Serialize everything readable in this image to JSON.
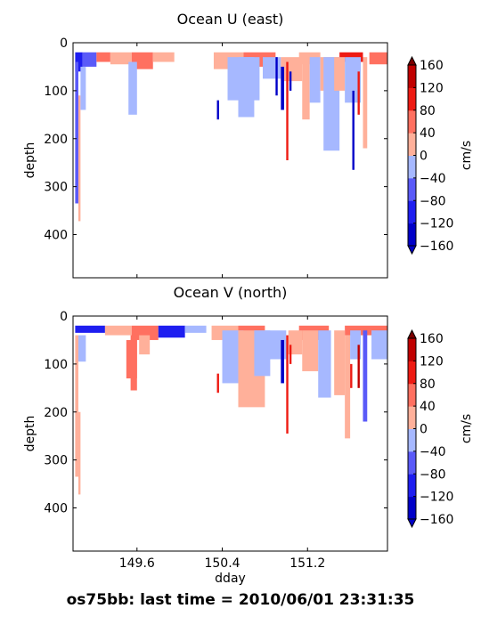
{
  "figure_title": "os75bb: last time = 2010/06/01 23:31:35",
  "chart_data": [
    {
      "type": "heatmap",
      "title": "Ocean U (east)",
      "xlabel": "",
      "ylabel": "depth",
      "xlim": [
        149.0,
        151.95
      ],
      "ylim": [
        490,
        0
      ],
      "x_ticks": [
        149.6,
        150.4,
        151.2
      ],
      "x_tick_labels": [],
      "y_ticks": [
        0,
        100,
        200,
        300,
        400
      ],
      "y_tick_labels": [
        "0",
        "100",
        "200",
        "300",
        "400"
      ],
      "grid": false,
      "colorbar": {
        "label": "cm/s",
        "bounds": [
          -160,
          -120,
          -80,
          -40,
          0,
          40,
          80,
          120,
          160
        ],
        "tick_labels": [
          "−160",
          "−120",
          "−80",
          "−40",
          "0",
          "40",
          "80",
          "120",
          "160"
        ],
        "colors": [
          "#0000c8",
          "#1e1ef0",
          "#5a5af8",
          "#a6b8ff",
          "#ffb09a",
          "#ff7060",
          "#ee1a12",
          "#c00000",
          "#7a0000"
        ]
      },
      "cells": [
        {
          "x": [
            149.02,
            149.09
          ],
          "depth": [
            20,
            60
          ],
          "value": -120
        },
        {
          "x": [
            149.09,
            149.22
          ],
          "depth": [
            20,
            50
          ],
          "value": -50
        },
        {
          "x": [
            149.22,
            149.35
          ],
          "depth": [
            20,
            40
          ],
          "value": 60
        },
        {
          "x": [
            149.35,
            149.55
          ],
          "depth": [
            20,
            45
          ],
          "value": 30
        },
        {
          "x": [
            149.55,
            149.75
          ],
          "depth": [
            20,
            55
          ],
          "value": 70
        },
        {
          "x": [
            149.75,
            149.95
          ],
          "depth": [
            20,
            40
          ],
          "value": 30
        },
        {
          "x": [
            150.32,
            150.6
          ],
          "depth": [
            20,
            55
          ],
          "value": 25
        },
        {
          "x": [
            150.6,
            150.9
          ],
          "depth": [
            20,
            50
          ],
          "value": 40
        },
        {
          "x": [
            151.12,
            151.32
          ],
          "depth": [
            20,
            45
          ],
          "value": 30
        },
        {
          "x": [
            151.5,
            151.72
          ],
          "depth": [
            20,
            40
          ],
          "value": 80
        },
        {
          "x": [
            151.78,
            151.95
          ],
          "depth": [
            20,
            45
          ],
          "value": 40
        },
        {
          "x": [
            149.02,
            149.05
          ],
          "depth": [
            40,
            335
          ],
          "value": -50
        },
        {
          "x": [
            149.05,
            149.07
          ],
          "depth": [
            110,
            372
          ],
          "value": 30
        },
        {
          "x": [
            149.07,
            149.12
          ],
          "depth": [
            50,
            140
          ],
          "value": -40
        },
        {
          "x": [
            149.52,
            149.6
          ],
          "depth": [
            40,
            150
          ],
          "value": -40
        },
        {
          "x": [
            150.45,
            150.75
          ],
          "depth": [
            30,
            120
          ],
          "value": -40
        },
        {
          "x": [
            150.55,
            150.7
          ],
          "depth": [
            30,
            155
          ],
          "value": -40
        },
        {
          "x": [
            150.78,
            150.95
          ],
          "depth": [
            30,
            75
          ],
          "value": -40
        },
        {
          "x": [
            150.95,
            151.15
          ],
          "depth": [
            30,
            80
          ],
          "value": 30
        },
        {
          "x": [
            151.15,
            151.22
          ],
          "depth": [
            30,
            160
          ],
          "value": 30
        },
        {
          "x": [
            151.22,
            151.32
          ],
          "depth": [
            30,
            125
          ],
          "value": -40
        },
        {
          "x": [
            151.32,
            151.45
          ],
          "depth": [
            30,
            100
          ],
          "value": 30
        },
        {
          "x": [
            151.35,
            151.5
          ],
          "depth": [
            30,
            225
          ],
          "value": -40
        },
        {
          "x": [
            151.45,
            151.55
          ],
          "depth": [
            30,
            100
          ],
          "value": 30
        },
        {
          "x": [
            151.55,
            151.7
          ],
          "depth": [
            30,
            125
          ],
          "value": -40
        },
        {
          "x": [
            151.62,
            151.64
          ],
          "depth": [
            100,
            265
          ],
          "value": -140
        },
        {
          "x": [
            151.72,
            151.76
          ],
          "depth": [
            30,
            220
          ],
          "value": 30
        },
        {
          "x": [
            150.35,
            150.37
          ],
          "depth": [
            120,
            160
          ],
          "value": -150
        },
        {
          "x": [
            150.9,
            150.92
          ],
          "depth": [
            30,
            110
          ],
          "value": -150
        },
        {
          "x": [
            150.95,
            150.98
          ],
          "depth": [
            50,
            140
          ],
          "value": -150
        },
        {
          "x": [
            151.0,
            151.02
          ],
          "depth": [
            40,
            245
          ],
          "value": 110
        },
        {
          "x": [
            151.03,
            151.05
          ],
          "depth": [
            60,
            100
          ],
          "value": -150
        },
        {
          "x": [
            151.67,
            151.69
          ],
          "depth": [
            60,
            150
          ],
          "value": 110
        }
      ]
    },
    {
      "type": "heatmap",
      "title": "Ocean V (north)",
      "xlabel": "dday",
      "ylabel": "depth",
      "xlim": [
        149.0,
        151.95
      ],
      "ylim": [
        490,
        0
      ],
      "x_ticks": [
        149.6,
        150.4,
        151.2
      ],
      "x_tick_labels": [
        "149.6",
        "150.4",
        "151.2"
      ],
      "y_ticks": [
        0,
        100,
        200,
        300,
        400
      ],
      "y_tick_labels": [
        "0",
        "100",
        "200",
        "300",
        "400"
      ],
      "grid": false,
      "colorbar": {
        "label": "cm/s",
        "bounds": [
          -160,
          -120,
          -80,
          -40,
          0,
          40,
          80,
          120,
          160
        ],
        "tick_labels": [
          "−160",
          "−120",
          "−80",
          "−40",
          "0",
          "40",
          "80",
          "120",
          "160"
        ],
        "colors": [
          "#0000c8",
          "#1e1ef0",
          "#5a5af8",
          "#a6b8ff",
          "#ffb09a",
          "#ff7060",
          "#ee1a12",
          "#c00000",
          "#7a0000"
        ]
      },
      "cells": [
        {
          "x": [
            149.02,
            149.3
          ],
          "depth": [
            20,
            35
          ],
          "value": -90
        },
        {
          "x": [
            149.3,
            149.55
          ],
          "depth": [
            20,
            40
          ],
          "value": 30
        },
        {
          "x": [
            149.55,
            149.8
          ],
          "depth": [
            20,
            50
          ],
          "value": 60
        },
        {
          "x": [
            149.8,
            150.05
          ],
          "depth": [
            20,
            45
          ],
          "value": -90
        },
        {
          "x": [
            150.05,
            150.25
          ],
          "depth": [
            20,
            35
          ],
          "value": -40
        },
        {
          "x": [
            150.3,
            150.55
          ],
          "depth": [
            20,
            50
          ],
          "value": 30
        },
        {
          "x": [
            150.55,
            150.8
          ],
          "depth": [
            20,
            55
          ],
          "value": 60
        },
        {
          "x": [
            151.12,
            151.4
          ],
          "depth": [
            20,
            50
          ],
          "value": 60
        },
        {
          "x": [
            151.55,
            151.95
          ],
          "depth": [
            20,
            40
          ],
          "value": 60
        },
        {
          "x": [
            149.02,
            149.05
          ],
          "depth": [
            40,
            335
          ],
          "value": 30
        },
        {
          "x": [
            149.05,
            149.07
          ],
          "depth": [
            200,
            372
          ],
          "value": 30
        },
        {
          "x": [
            149.05,
            149.12
          ],
          "depth": [
            40,
            95
          ],
          "value": -40
        },
        {
          "x": [
            149.5,
            149.6
          ],
          "depth": [
            50,
            130
          ],
          "value": 70
        },
        {
          "x": [
            149.54,
            149.6
          ],
          "depth": [
            40,
            155
          ],
          "value": 70
        },
        {
          "x": [
            149.62,
            149.72
          ],
          "depth": [
            40,
            80
          ],
          "value": 30
        },
        {
          "x": [
            150.4,
            150.6
          ],
          "depth": [
            30,
            140
          ],
          "value": -40
        },
        {
          "x": [
            150.55,
            150.8
          ],
          "depth": [
            30,
            190
          ],
          "value": 30
        },
        {
          "x": [
            150.7,
            150.85
          ],
          "depth": [
            30,
            125
          ],
          "value": -40
        },
        {
          "x": [
            150.8,
            151.0
          ],
          "depth": [
            30,
            90
          ],
          "value": -40
        },
        {
          "x": [
            151.02,
            151.15
          ],
          "depth": [
            30,
            80
          ],
          "value": 30
        },
        {
          "x": [
            151.15,
            151.3
          ],
          "depth": [
            30,
            115
          ],
          "value": 30
        },
        {
          "x": [
            151.3,
            151.42
          ],
          "depth": [
            30,
            170
          ],
          "value": -40
        },
        {
          "x": [
            151.45,
            151.55
          ],
          "depth": [
            30,
            165
          ],
          "value": 30
        },
        {
          "x": [
            151.55,
            151.6
          ],
          "depth": [
            40,
            255
          ],
          "value": 30
        },
        {
          "x": [
            151.6,
            151.7
          ],
          "depth": [
            30,
            90
          ],
          "value": -40
        },
        {
          "x": [
            151.72,
            151.76
          ],
          "depth": [
            30,
            220
          ],
          "value": -60
        },
        {
          "x": [
            151.8,
            151.95
          ],
          "depth": [
            30,
            90
          ],
          "value": -40
        },
        {
          "x": [
            150.35,
            150.37
          ],
          "depth": [
            120,
            160
          ],
          "value": 110
        },
        {
          "x": [
            150.95,
            150.98
          ],
          "depth": [
            50,
            140
          ],
          "value": -150
        },
        {
          "x": [
            151.0,
            151.02
          ],
          "depth": [
            40,
            245
          ],
          "value": 110
        },
        {
          "x": [
            151.03,
            151.05
          ],
          "depth": [
            60,
            100
          ],
          "value": 110
        },
        {
          "x": [
            151.6,
            151.62
          ],
          "depth": [
            100,
            150
          ],
          "value": 110
        },
        {
          "x": [
            151.67,
            151.69
          ],
          "depth": [
            60,
            150
          ],
          "value": 140
        }
      ]
    }
  ]
}
